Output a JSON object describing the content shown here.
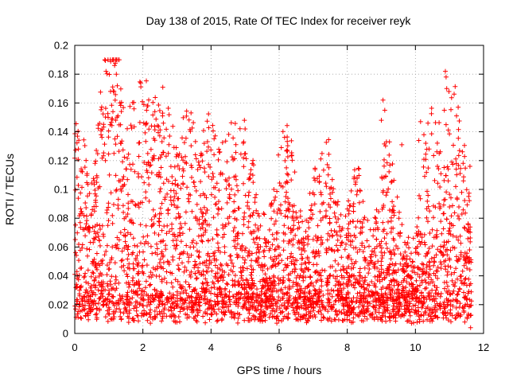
{
  "chart_data": {
    "type": "scatter",
    "title": "Day 138 of 2015, Rate Of TEC Index for receiver reyk",
    "xlabel": "GPS time / hours",
    "ylabel": "ROTI / TECUs",
    "xlim": [
      0,
      12
    ],
    "ylim": [
      0,
      0.2
    ],
    "x_ticks": [
      "0",
      "2",
      "4",
      "6",
      "8",
      "10",
      "12"
    ],
    "y_ticks": [
      "0",
      "0.02",
      "0.04",
      "0.06",
      "0.08",
      "0.1",
      "0.12",
      "0.14",
      "0.16",
      "0.18",
      "0.2"
    ],
    "grid": true,
    "marker": "+",
    "color": "#ff0000",
    "series": [
      {
        "name": "ROTI",
        "note": "dense scatter of several thousand '+' markers from 0 to ~11.65 h; outliers listed explicitly",
        "x_range": [
          0.0,
          11.65
        ],
        "baseline_level": 0.02,
        "outliers": [
          {
            "x": 1.17,
            "y": 0.186
          },
          {
            "x": 1.22,
            "y": 0.18
          },
          {
            "x": 1.25,
            "y": 0.172
          },
          {
            "x": 1.15,
            "y": 0.168
          },
          {
            "x": 1.05,
            "y": 0.168
          },
          {
            "x": 1.12,
            "y": 0.154
          },
          {
            "x": 0.98,
            "y": 0.15
          },
          {
            "x": 1.2,
            "y": 0.148
          },
          {
            "x": 1.18,
            "y": 0.135
          },
          {
            "x": 1.15,
            "y": 0.125
          },
          {
            "x": 0.9,
            "y": 0.12
          },
          {
            "x": 2.35,
            "y": 0.154
          },
          {
            "x": 2.58,
            "y": 0.153
          },
          {
            "x": 2.6,
            "y": 0.146
          },
          {
            "x": 2.55,
            "y": 0.124
          },
          {
            "x": 3.8,
            "y": 0.132
          },
          {
            "x": 4.98,
            "y": 0.148
          },
          {
            "x": 5.0,
            "y": 0.142
          },
          {
            "x": 4.95,
            "y": 0.122
          },
          {
            "x": 9.05,
            "y": 0.162
          },
          {
            "x": 9.1,
            "y": 0.155
          },
          {
            "x": 9.0,
            "y": 0.148
          },
          {
            "x": 9.15,
            "y": 0.133
          },
          {
            "x": 9.6,
            "y": 0.131
          },
          {
            "x": 10.15,
            "y": 0.147
          },
          {
            "x": 10.25,
            "y": 0.138
          },
          {
            "x": 10.1,
            "y": 0.134
          },
          {
            "x": 10.4,
            "y": 0.128
          },
          {
            "x": 10.88,
            "y": 0.182
          },
          {
            "x": 10.9,
            "y": 0.178
          },
          {
            "x": 10.92,
            "y": 0.17
          },
          {
            "x": 10.85,
            "y": 0.155
          },
          {
            "x": 10.9,
            "y": 0.145
          },
          {
            "x": 11.6,
            "y": 0.116
          },
          {
            "x": 11.2,
            "y": 0.118
          },
          {
            "x": 11.62,
            "y": 0.004
          }
        ]
      }
    ]
  }
}
